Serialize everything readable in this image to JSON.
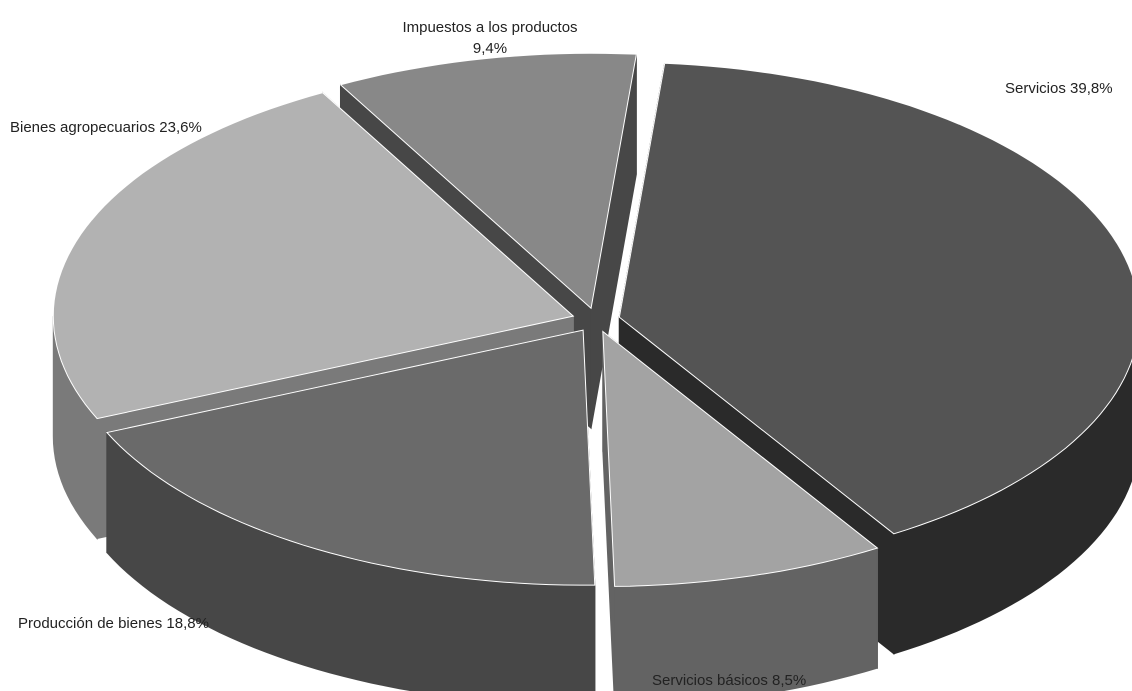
{
  "chart_data": {
    "type": "pie",
    "title": "",
    "style": "3d-exploded",
    "labels": [
      "Servicios  39,8%",
      "Servicios básicos 8,5%",
      "Producción de bienes 18,8%",
      "Bienes agropecuarios 23,6%",
      "Impuestos a los productos"
    ],
    "label_extra": [
      "",
      "",
      "",
      "",
      "9,4%"
    ],
    "values": [
      39.8,
      8.5,
      18.8,
      23.6,
      9.4
    ],
    "colors": {
      "top": [
        "#545454",
        "#a3a3a3",
        "#6a6a6a",
        "#b2b2b2",
        "#888888"
      ],
      "side": [
        "#2a2a2a",
        "#636363",
        "#474747",
        "#7a7a7a",
        "#474747"
      ]
    }
  }
}
